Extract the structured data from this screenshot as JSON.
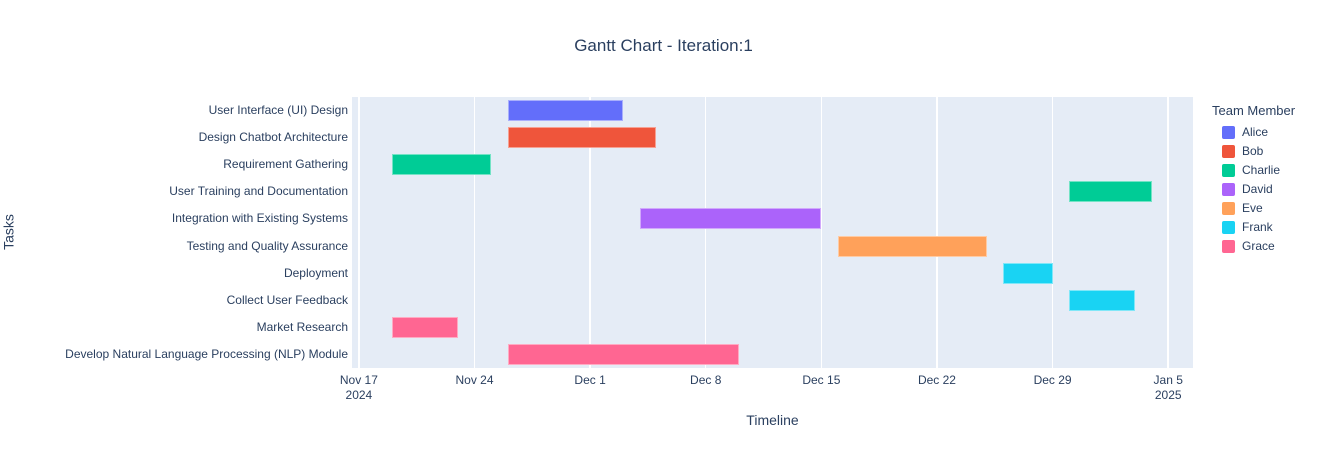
{
  "figure": {
    "title": "Gantt Chart - Iteration:1"
  },
  "chart_data": {
    "type": "gantt",
    "title": "Gantt Chart - Iteration:1",
    "xlabel": "Timeline",
    "ylabel": "Tasks",
    "axis_range": [
      "2024-11-16T14:00:00Z",
      "2025-01-06T12:00:00Z"
    ],
    "grid": "vertical-weekly-white",
    "legend_position": "right",
    "x_ticks": [
      {
        "label": "Nov 17",
        "sublabel": "2024",
        "date": "2024-11-17T00:00:00Z"
      },
      {
        "label": "Nov 24",
        "date": "2024-11-24T00:00:00Z"
      },
      {
        "label": "Dec 1",
        "date": "2024-12-01T00:00:00Z"
      },
      {
        "label": "Dec 8",
        "date": "2024-12-08T00:00:00Z"
      },
      {
        "label": "Dec 15",
        "date": "2024-12-15T00:00:00Z"
      },
      {
        "label": "Dec 22",
        "date": "2024-12-22T00:00:00Z"
      },
      {
        "label": "Dec 29",
        "date": "2024-12-29T00:00:00Z"
      },
      {
        "label": "Jan 5",
        "sublabel": "2025",
        "date": "2025-01-05T00:00:00Z"
      }
    ],
    "legend": {
      "title": "Team Member",
      "members": [
        {
          "name": "Alice",
          "color": "#636EFA"
        },
        {
          "name": "Bob",
          "color": "#EF553B"
        },
        {
          "name": "Charlie",
          "color": "#00CC96"
        },
        {
          "name": "David",
          "color": "#AB63FA"
        },
        {
          "name": "Eve",
          "color": "#FFA15A"
        },
        {
          "name": "Frank",
          "color": "#19D3F3"
        },
        {
          "name": "Grace",
          "color": "#FF6692"
        }
      ]
    },
    "tasks": [
      {
        "label": "User Interface (UI) Design",
        "member": "Alice",
        "start": "2024-11-26T00:00:00Z",
        "end": "2024-12-03T00:00:00Z"
      },
      {
        "label": "Design Chatbot Architecture",
        "member": "Bob",
        "start": "2024-11-26T00:00:00Z",
        "end": "2024-12-05T00:00:00Z"
      },
      {
        "label": "Requirement Gathering",
        "member": "Charlie",
        "start": "2024-11-19T00:00:00Z",
        "end": "2024-11-25T00:00:00Z"
      },
      {
        "label": "User Training and Documentation",
        "member": "Charlie",
        "start": "2024-12-30T00:00:00Z",
        "end": "2025-01-04T00:00:00Z"
      },
      {
        "label": "Integration with Existing Systems",
        "member": "David",
        "start": "2024-12-04T00:00:00Z",
        "end": "2024-12-15T00:00:00Z"
      },
      {
        "label": "Testing and Quality Assurance",
        "member": "Eve",
        "start": "2024-12-16T00:00:00Z",
        "end": "2024-12-25T00:00:00Z"
      },
      {
        "label": "Deployment",
        "member": "Frank",
        "start": "2024-12-26T00:00:00Z",
        "end": "2024-12-29T00:00:00Z"
      },
      {
        "label": "Collect User Feedback",
        "member": "Frank",
        "start": "2024-12-30T00:00:00Z",
        "end": "2025-01-03T00:00:00Z"
      },
      {
        "label": "Market Research",
        "member": "Grace",
        "start": "2024-11-19T00:00:00Z",
        "end": "2024-11-23T00:00:00Z"
      },
      {
        "label": "Develop Natural Language Processing (NLP) Module",
        "member": "Grace",
        "start": "2024-11-26T00:00:00Z",
        "end": "2024-12-10T00:00:00Z"
      }
    ],
    "colors": {
      "plot_background": "#E5ECF6",
      "paper_background": "#FFFFFF",
      "gridline": "#FFFFFF",
      "text": "#2A3F5F"
    }
  }
}
